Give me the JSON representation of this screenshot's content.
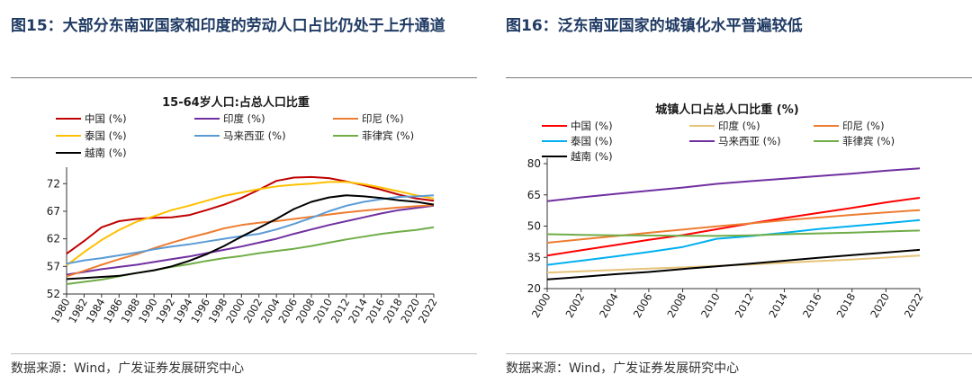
{
  "figures": [
    {
      "id": "fig15",
      "title": "图15：大部分东南亚国家和印度的劳动人口占比仍处于上升通道",
      "source": "数据来源：Wind，广发证券发展研究中心",
      "chart_data": {
        "type": "line",
        "title": "15-64岁人口:占总人口比重",
        "ylim": [
          52,
          74
        ],
        "yticks": [
          52,
          57,
          62,
          67,
          72
        ],
        "x": [
          1980,
          1982,
          1984,
          1986,
          1988,
          1990,
          1992,
          1994,
          1996,
          1998,
          2000,
          2002,
          2004,
          2006,
          2008,
          2010,
          2012,
          2014,
          2016,
          2018,
          2020,
          2022
        ],
        "xticks": [
          "1980",
          "1982",
          "1984",
          "1986",
          "1988",
          "1990",
          "1992",
          "1994",
          "1996",
          "1998",
          "2000",
          "2002",
          "2004",
          "2006",
          "2008",
          "2010",
          "2012",
          "2014",
          "2016",
          "2018",
          "2020",
          "2022"
        ],
        "legend_position": "top",
        "series": [
          {
            "name": "中国 (%)",
            "color": "#c00000",
            "values": [
              59.3,
              61.6,
              64.1,
              65.2,
              65.6,
              65.8,
              65.9,
              66.3,
              67.2,
              68.2,
              69.4,
              70.9,
              72.5,
              73.1,
              73.2,
              73.0,
              72.4,
              71.7,
              70.9,
              70.0,
              69.3,
              68.9
            ]
          },
          {
            "name": "印度 (%)",
            "color": "#7030a0",
            "values": [
              55.5,
              56.0,
              56.5,
              56.9,
              57.3,
              57.8,
              58.3,
              58.8,
              59.4,
              60.0,
              60.6,
              61.3,
              62.0,
              62.9,
              63.7,
              64.5,
              65.2,
              65.9,
              66.6,
              67.2,
              67.6,
              68.0
            ]
          },
          {
            "name": "印尼 (%)",
            "color": "#ed7d31",
            "values": [
              55.2,
              56.2,
              57.3,
              58.3,
              59.2,
              60.3,
              61.3,
              62.2,
              63.0,
              63.9,
              64.5,
              64.9,
              65.2,
              65.6,
              66.0,
              66.4,
              66.8,
              67.1,
              67.4,
              67.7,
              67.9,
              68.1
            ]
          },
          {
            "name": "泰国 (%)",
            "color": "#ffc000",
            "values": [
              57.2,
              59.6,
              61.8,
              63.6,
              65.1,
              66.1,
              67.2,
              68.0,
              68.9,
              69.8,
              70.4,
              71.0,
              71.5,
              71.8,
              72.0,
              72.3,
              72.3,
              71.9,
              71.3,
              70.6,
              69.9,
              69.3
            ]
          },
          {
            "name": "马来西亚 (%)",
            "color": "#5b9bd5",
            "values": [
              57.5,
              58.1,
              58.5,
              59.0,
              59.5,
              60.1,
              60.6,
              61.0,
              61.5,
              62.0,
              62.5,
              62.9,
              63.7,
              64.7,
              65.8,
              67.0,
              68.0,
              68.7,
              69.2,
              69.6,
              69.7,
              69.9
            ]
          },
          {
            "name": "菲律宾 (%)",
            "color": "#70ad47",
            "values": [
              53.8,
              54.2,
              54.6,
              55.2,
              55.8,
              56.3,
              56.9,
              57.4,
              58.0,
              58.5,
              58.9,
              59.4,
              59.8,
              60.2,
              60.7,
              61.3,
              61.9,
              62.4,
              62.9,
              63.3,
              63.6,
              64.1
            ]
          },
          {
            "name": "越南 (%)",
            "color": "#000000",
            "values": [
              54.7,
              54.9,
              55.1,
              55.3,
              55.8,
              56.3,
              57.0,
              58.0,
              59.2,
              60.7,
              62.4,
              64.0,
              65.6,
              67.4,
              68.7,
              69.5,
              69.9,
              69.7,
              69.4,
              69.0,
              68.7,
              68.2
            ]
          }
        ]
      }
    },
    {
      "id": "fig16",
      "title": "图16：泛东南亚国家的城镇化水平普遍较低",
      "source": "数据来源：Wind，广发证券发展研究中心",
      "chart_data": {
        "type": "line",
        "title": "城镇人口占总人口比重 (%)",
        "ylim": [
          20,
          80
        ],
        "yticks": [
          20,
          35,
          50,
          65,
          80
        ],
        "x": [
          2000,
          2002,
          2004,
          2006,
          2008,
          2010,
          2012,
          2014,
          2016,
          2018,
          2020,
          2022
        ],
        "xticks": [
          "2000",
          "2002",
          "2004",
          "2006",
          "2008",
          "2010",
          "2012",
          "2014",
          "2016",
          "2018",
          "2020",
          "2022"
        ],
        "legend_position": "top",
        "series": [
          {
            "name": "中国 (%)",
            "color": "#ff0000",
            "values": [
              35.9,
              38.4,
              40.9,
              43.4,
              45.7,
              48.5,
              51.3,
              53.9,
              56.3,
              58.7,
              61.4,
              63.6
            ]
          },
          {
            "name": "印度 (%)",
            "color": "#e6c37a",
            "values": [
              27.7,
              28.3,
              29.0,
              29.6,
              30.2,
              30.9,
              31.6,
              32.4,
              33.2,
              34.0,
              34.9,
              35.9
            ]
          },
          {
            "name": "印尼 (%)",
            "color": "#ed7d31",
            "values": [
              42.0,
              43.6,
              45.2,
              46.8,
              48.3,
              49.9,
              51.3,
              52.8,
              54.1,
              55.4,
              56.6,
              57.7
            ]
          },
          {
            "name": "泰国 (%)",
            "color": "#00b0f0",
            "values": [
              31.4,
              33.4,
              35.4,
              37.6,
              40.0,
              43.9,
              45.2,
              46.8,
              48.6,
              50.0,
              51.4,
              52.9
            ]
          },
          {
            "name": "马来西亚 (%)",
            "color": "#7030a0",
            "values": [
              62.0,
              63.8,
              65.4,
              67.0,
              68.5,
              70.3,
              71.6,
              72.8,
              74.0,
              75.2,
              76.6,
              77.7
            ]
          },
          {
            "name": "菲律宾 (%)",
            "color": "#70ad47",
            "values": [
              46.1,
              45.8,
              45.6,
              45.5,
              45.4,
              45.3,
              45.6,
              46.1,
              46.5,
              46.9,
              47.4,
              47.9
            ]
          },
          {
            "name": "越南 (%)",
            "color": "#000000",
            "values": [
              24.4,
              25.6,
              26.9,
              28.0,
              29.4,
              30.7,
              32.0,
              33.4,
              34.8,
              36.1,
              37.3,
              38.6
            ]
          }
        ]
      }
    }
  ]
}
